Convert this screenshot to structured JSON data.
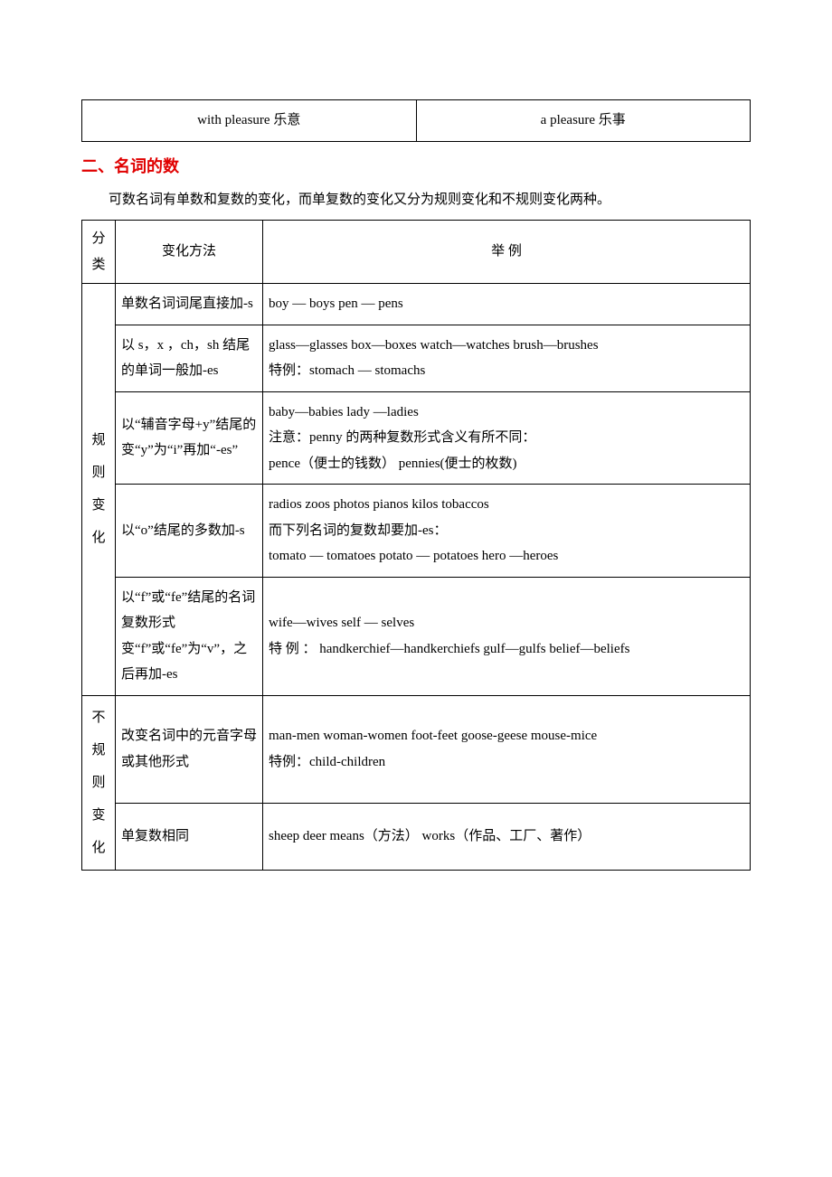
{
  "top": {
    "left": "with pleasure  乐意",
    "right": "a pleasure  乐事"
  },
  "heading": "二、名词的数",
  "intro": "可数名词有单数和复数的变化，而单复数的变化又分为规则变化和不规则变化两种。",
  "headers": {
    "c1": "分  类",
    "c2": "变化方法",
    "c3": "举    例"
  },
  "groups": [
    {
      "label": "规则变化",
      "rows": [
        {
          "m": "单数名词词尾直接加-s",
          "e": "boy — boys      pen — pens"
        },
        {
          "m": "以 s，x ，ch，sh 结尾的单词一般加-es",
          "e": "glass—glasses          box—boxes             watch—watches    brush—brushes\n特例：stomach — stomachs"
        },
        {
          "m": "以“辅音字母+y”结尾的变“y”为“i”再加“-es”",
          "e": "baby—babies      lady —ladies\n注意：penny 的两种复数形式含义有所不同：\n        pence（便士的钱数）    pennies(便士的枚数)"
        },
        {
          "m": "以“o”结尾的多数加-s",
          "e": "radios    zoos    photos    pianos     kilos     tobaccos\n而下列名词的复数却要加-es：\ntomato  —  tomatoes        potato  —  potatoes         hero  —heroes"
        },
        {
          "m": "以“f”或“fe”结尾的名词复数形式变“f”或“fe”为“v”，之后再加-es",
          "e": "wife—wives      self — selves\n特  例 ：   handkerchief—handkerchiefs       gulf—gulfs    belief—beliefs"
        }
      ]
    },
    {
      "label": "不规则变化",
      "rows": [
        {
          "m": "改变名词中的元音字母或其他形式",
          "e": "man-men      woman-women       foot-feet       goose-geese    mouse-mice\n特例：child-children"
        },
        {
          "m": "单复数相同",
          "e": "sheep    deer     means（方法）   works（作品、工厂、著作）"
        }
      ]
    }
  ]
}
